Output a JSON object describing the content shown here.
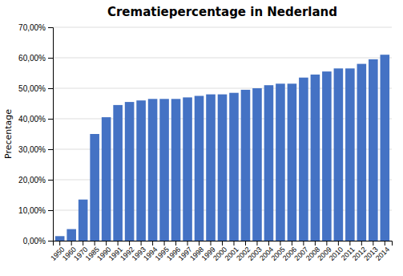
{
  "chart_data": {
    "type": "bar",
    "title": "Crematiepercentage in Nederland",
    "ylabel": "Precentage",
    "categories": [
      "1950",
      "1960",
      "1970",
      "1985",
      "1990",
      "1991",
      "1992",
      "1993",
      "1994",
      "1995",
      "1996",
      "1997",
      "1998",
      "1999",
      "2000",
      "2001",
      "2002",
      "2003",
      "2004",
      "2005",
      "2006",
      "2007",
      "2008",
      "2009",
      "2010",
      "2011",
      "2012",
      "2013",
      "2014"
    ],
    "values": [
      1.5,
      3.8,
      13.5,
      35.0,
      40.5,
      44.5,
      45.5,
      46.0,
      46.5,
      46.5,
      46.5,
      47.0,
      47.5,
      48.0,
      48.0,
      48.5,
      49.5,
      50.0,
      51.0,
      51.5,
      51.5,
      53.5,
      54.5,
      55.5,
      56.5,
      56.5,
      58.0,
      59.5,
      61.0
    ],
    "color": "#4472C4",
    "ylim": [
      0,
      70
    ],
    "yticks": [
      {
        "value": 0,
        "label": "0,00%"
      },
      {
        "value": 10,
        "label": "10,00%"
      },
      {
        "value": 20,
        "label": "20,00%"
      },
      {
        "value": 30,
        "label": "30,00%"
      },
      {
        "value": 40,
        "label": "40,00%"
      },
      {
        "value": 50,
        "label": "50,00%"
      },
      {
        "value": 60,
        "label": "60,00%"
      },
      {
        "value": 70,
        "label": "70,00%"
      }
    ],
    "grid": true
  }
}
